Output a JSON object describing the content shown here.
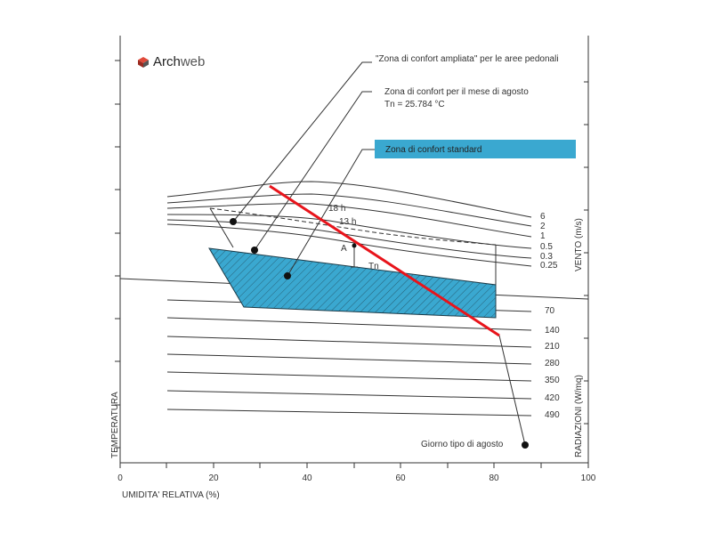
{
  "brand": {
    "name_part1": "Arch",
    "name_part2": "web",
    "icon": "cube-logo-icon"
  },
  "axes": {
    "x_label": "UMIDITA' RELATIVA (%)",
    "x_ticks": [
      "0",
      "20",
      "40",
      "60",
      "80",
      "100"
    ],
    "left_label": "TEMPERATURA",
    "right_top_label": "VENTO (m/s)",
    "right_bottom_label": "RADIAZIONI (W/mq)"
  },
  "callouts": {
    "extended_zone": "\"Zona di confort ampliata\" per le aree pedonali",
    "august_zone_line1": "Zona di confort per il mese di agosto",
    "august_zone_line2": "Tn = 25.784 °C",
    "standard_zone": "Zona di confort standard",
    "typical_day": "Giorno tipo di agosto"
  },
  "markers": {
    "hour_18": "18 h",
    "hour_13": "13 h",
    "point_a": "A",
    "point_tn": "Tn"
  },
  "wind_values": [
    "6",
    "2",
    "1",
    "0.5",
    "0.3",
    "0.25"
  ],
  "radiation_values": [
    "70",
    "140",
    "210",
    "280",
    "350",
    "420",
    "490"
  ],
  "colors": {
    "zone_fill": "#3aa8d0",
    "typical_day_line": "#e8141b",
    "line": "#333333"
  }
}
